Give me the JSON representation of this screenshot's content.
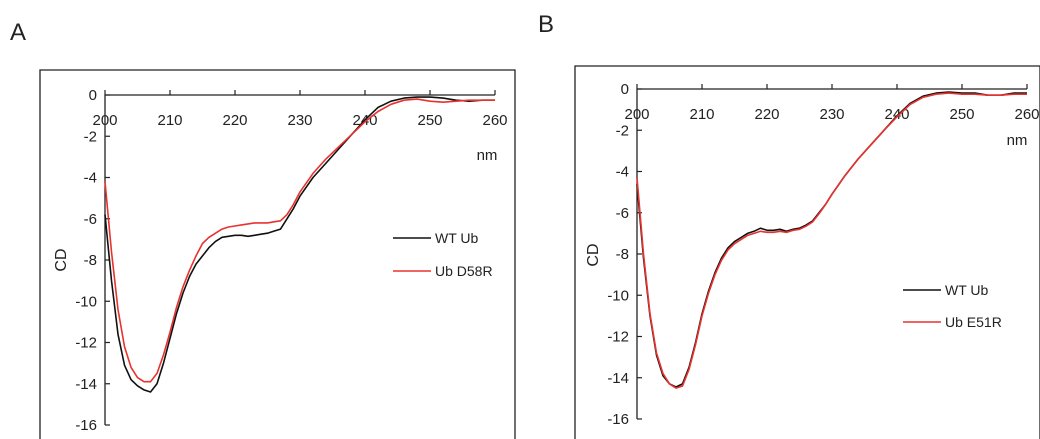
{
  "chart_data": [
    {
      "panel": "A",
      "type": "line",
      "xlabel": "nm",
      "ylabel": "CD",
      "xlim": [
        200,
        260
      ],
      "ylim": [
        -16,
        0
      ],
      "xticks": [
        "200",
        "210",
        "220",
        "230",
        "240",
        "250",
        "260"
      ],
      "yticks": [
        "0",
        "-2",
        "-4",
        "-6",
        "-8",
        "-10",
        "-12",
        "-14",
        "-16"
      ],
      "legend_position": "right",
      "series": [
        {
          "name": "WT Ub",
          "color": "#111111",
          "x": [
            200,
            201,
            202,
            203,
            204,
            205,
            206,
            207,
            208,
            209,
            210,
            211,
            212,
            213,
            214,
            215,
            216,
            217,
            218,
            219,
            220,
            221,
            222,
            223,
            224,
            225,
            226,
            227,
            228,
            229,
            230,
            232,
            234,
            236,
            238,
            240,
            242,
            244,
            246,
            248,
            250,
            252,
            254,
            256,
            258,
            260
          ],
          "y": [
            -5.8,
            -9.0,
            -11.6,
            -13.1,
            -13.8,
            -14.1,
            -14.3,
            -14.4,
            -14.0,
            -13.0,
            -11.8,
            -10.6,
            -9.6,
            -8.8,
            -8.2,
            -7.8,
            -7.4,
            -7.1,
            -6.9,
            -6.85,
            -6.8,
            -6.8,
            -6.85,
            -6.8,
            -6.75,
            -6.7,
            -6.6,
            -6.5,
            -6.0,
            -5.5,
            -4.9,
            -4.0,
            -3.3,
            -2.6,
            -1.9,
            -1.2,
            -0.6,
            -0.3,
            -0.15,
            -0.1,
            -0.1,
            -0.15,
            -0.25,
            -0.3,
            -0.25,
            -0.25
          ]
        },
        {
          "name": "Ub D58R",
          "color": "#e8322d",
          "x": [
            200,
            201,
            202,
            203,
            204,
            205,
            206,
            207,
            208,
            209,
            210,
            211,
            212,
            213,
            214,
            215,
            216,
            217,
            218,
            219,
            220,
            221,
            222,
            223,
            224,
            225,
            226,
            227,
            228,
            229,
            230,
            232,
            234,
            236,
            238,
            240,
            242,
            244,
            246,
            248,
            250,
            252,
            254,
            256,
            258,
            260
          ],
          "y": [
            -4.2,
            -7.6,
            -10.4,
            -12.2,
            -13.2,
            -13.7,
            -13.9,
            -13.9,
            -13.5,
            -12.6,
            -11.5,
            -10.3,
            -9.3,
            -8.5,
            -7.8,
            -7.2,
            -6.9,
            -6.7,
            -6.5,
            -6.4,
            -6.35,
            -6.3,
            -6.25,
            -6.2,
            -6.2,
            -6.2,
            -6.15,
            -6.1,
            -5.8,
            -5.3,
            -4.7,
            -3.8,
            -3.1,
            -2.5,
            -1.9,
            -1.3,
            -0.8,
            -0.45,
            -0.25,
            -0.2,
            -0.3,
            -0.35,
            -0.3,
            -0.25,
            -0.25,
            -0.25
          ]
        }
      ]
    },
    {
      "panel": "B",
      "type": "line",
      "xlabel": "nm",
      "ylabel": "CD",
      "xlim": [
        200,
        260
      ],
      "ylim": [
        -16,
        0
      ],
      "xticks": [
        "200",
        "210",
        "220",
        "230",
        "240",
        "250",
        "260"
      ],
      "yticks": [
        "0",
        "-2",
        "-4",
        "-6",
        "-8",
        "-10",
        "-12",
        "-14",
        "-16"
      ],
      "legend_position": "right",
      "series": [
        {
          "name": "WT Ub",
          "color": "#111111",
          "x": [
            200,
            201,
            202,
            203,
            204,
            205,
            206,
            207,
            208,
            209,
            210,
            211,
            212,
            213,
            214,
            215,
            216,
            217,
            218,
            219,
            220,
            221,
            222,
            223,
            224,
            225,
            226,
            227,
            228,
            229,
            230,
            232,
            234,
            236,
            238,
            240,
            242,
            244,
            246,
            248,
            250,
            252,
            254,
            256,
            258,
            260
          ],
          "y": [
            -4.6,
            -8.2,
            -11.0,
            -12.9,
            -13.9,
            -14.3,
            -14.45,
            -14.3,
            -13.5,
            -12.3,
            -10.9,
            -9.8,
            -8.9,
            -8.2,
            -7.7,
            -7.4,
            -7.2,
            -7.0,
            -6.9,
            -6.75,
            -6.85,
            -6.85,
            -6.8,
            -6.9,
            -6.8,
            -6.75,
            -6.6,
            -6.4,
            -6.0,
            -5.6,
            -5.1,
            -4.2,
            -3.4,
            -2.7,
            -2.0,
            -1.3,
            -0.7,
            -0.35,
            -0.2,
            -0.15,
            -0.2,
            -0.2,
            -0.3,
            -0.3,
            -0.2,
            -0.2
          ]
        },
        {
          "name": "Ub E51R",
          "color": "#e8322d",
          "x": [
            200,
            201,
            202,
            203,
            204,
            205,
            206,
            207,
            208,
            209,
            210,
            211,
            212,
            213,
            214,
            215,
            216,
            217,
            218,
            219,
            220,
            221,
            222,
            223,
            224,
            225,
            226,
            227,
            228,
            229,
            230,
            232,
            234,
            236,
            238,
            240,
            242,
            244,
            246,
            248,
            250,
            252,
            254,
            256,
            258,
            260
          ],
          "y": [
            -4.3,
            -8.0,
            -10.9,
            -12.8,
            -13.8,
            -14.3,
            -14.5,
            -14.4,
            -13.6,
            -12.4,
            -11.0,
            -9.9,
            -9.0,
            -8.3,
            -7.8,
            -7.5,
            -7.3,
            -7.1,
            -7.0,
            -6.9,
            -6.95,
            -6.95,
            -6.9,
            -6.95,
            -6.85,
            -6.8,
            -6.65,
            -6.45,
            -6.05,
            -5.6,
            -5.1,
            -4.2,
            -3.4,
            -2.7,
            -2.0,
            -1.35,
            -0.75,
            -0.4,
            -0.25,
            -0.2,
            -0.25,
            -0.25,
            -0.3,
            -0.3,
            -0.25,
            -0.25
          ]
        }
      ]
    }
  ]
}
